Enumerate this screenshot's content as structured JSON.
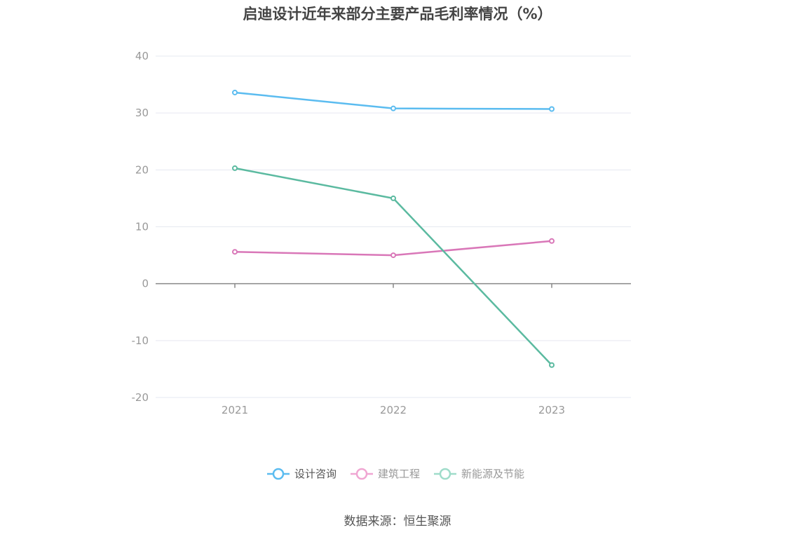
{
  "title": "启迪设计近年来部分主要产品毛利率情况（%）",
  "source": "数据来源：恒生聚源",
  "chart_data": {
    "type": "line",
    "title": "启迪设计近年来部分主要产品毛利率情况（%）",
    "categories": [
      "2021",
      "2022",
      "2023"
    ],
    "ylim": [
      -20,
      40
    ],
    "yticks": [
      40,
      30,
      20,
      10,
      0,
      -10,
      -20
    ],
    "grid": true,
    "legend_position": "bottom",
    "series": [
      {
        "name": "设计咨询",
        "values": [
          33.6,
          30.8,
          30.7
        ],
        "color": "#5bbcf0"
      },
      {
        "name": "建筑工程",
        "values": [
          5.6,
          5.0,
          7.5
        ],
        "color": "#d977b8"
      },
      {
        "name": "新能源及节能",
        "values": [
          20.3,
          15.0,
          -14.3
        ],
        "color": "#5bbaa0"
      }
    ]
  }
}
